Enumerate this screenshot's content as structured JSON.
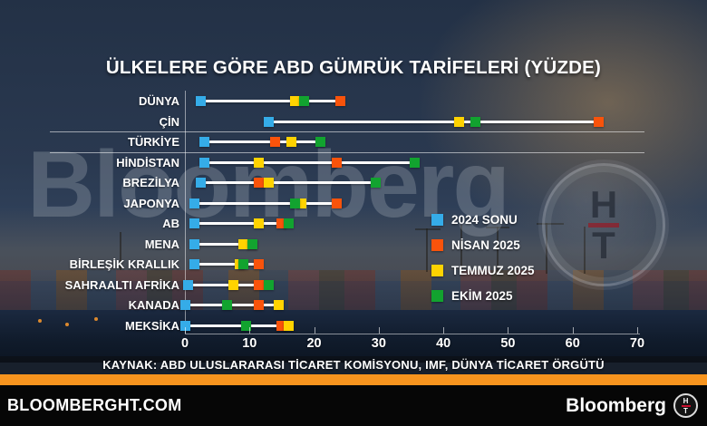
{
  "title": "ÜLKELERE GÖRE ABD GÜMRÜK TARİFELERİ (YÜZDE)",
  "source": {
    "text": "KAYNAK: ABD ULUSLARARASI TİCARET KOMİSYONU, IMF, DÜNYA TİCARET ÖRGÜTÜ"
  },
  "watermark": {
    "text": "Bloomberg",
    "badge_top": "H",
    "badge_bottom": "T"
  },
  "footer": {
    "site": "BLOOMBERGHT.COM",
    "brand": "Bloomberg",
    "badge_top": "H",
    "badge_bottom": "T"
  },
  "colors": {
    "accent_orange_bar": "#F7941E",
    "series_blue": "#35ACE8",
    "series_orange": "#F9530B",
    "series_yellow": "#FFD300",
    "series_green": "#12A32F"
  },
  "chart_data": {
    "type": "dumbbell",
    "title": "ÜLKELERE GÖRE ABD GÜMRÜK TARİFELERİ (YÜZDE)",
    "xlabel": "",
    "xlim": [
      0,
      70
    ],
    "xticks": [
      0,
      10,
      20,
      30,
      40,
      50,
      60,
      70
    ],
    "grid": false,
    "legend_position": "middle-right",
    "highlight_category": "TÜRKİYE",
    "categories": [
      "DÜNYA",
      "ÇİN",
      "TÜRKİYE",
      "HİNDİSTAN",
      "BREZİLYA",
      "JAPONYA",
      "AB",
      "MENA",
      "BİRLEŞİK KRALLIK",
      "SAHRAALTI AFRİKA",
      "KANADA",
      "MEKSİKA"
    ],
    "series": [
      {
        "name": "2024 SONU",
        "color": "#35ACE8",
        "values": [
          2.5,
          13,
          3,
          3,
          2.5,
          1.5,
          1.5,
          1.5,
          1.5,
          0.5,
          0,
          0
        ]
      },
      {
        "name": "NİSAN 2025",
        "color": "#F9530B",
        "values": [
          24,
          64,
          14,
          23.5,
          11.5,
          23.5,
          15,
          10.5,
          11.5,
          11.5,
          11.5,
          15
        ]
      },
      {
        "name": "TEMMUZ 2025",
        "color": "#FFD300",
        "values": [
          17,
          42.5,
          16.5,
          11.5,
          13,
          18,
          11.5,
          9,
          8.5,
          7.5,
          14.5,
          16
        ]
      },
      {
        "name": "EKİM 2025",
        "color": "#12A32F",
        "values": [
          18.5,
          45,
          21,
          35.5,
          29.5,
          17,
          16,
          10.5,
          9,
          13,
          6.5,
          9.5
        ]
      }
    ]
  }
}
